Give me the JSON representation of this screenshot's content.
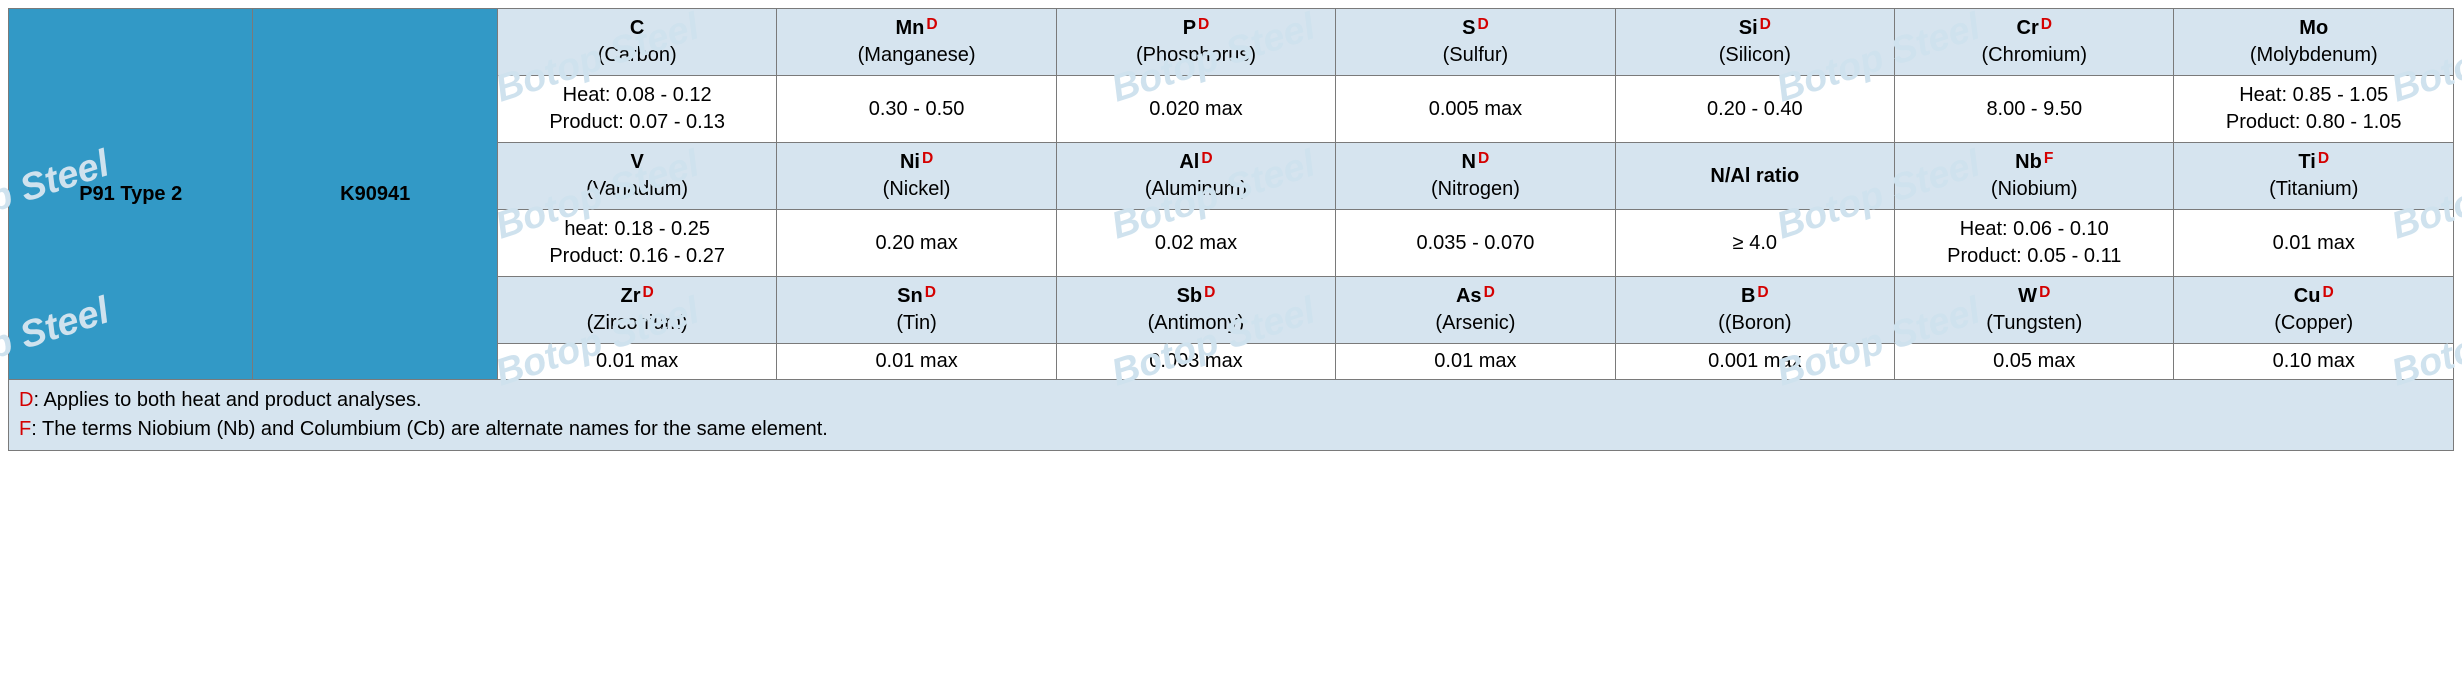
{
  "colors": {
    "grade_bg": "#3299c6",
    "uns_bg": "#3299c6",
    "header_bg": "#d6e4ef",
    "value_bg": "#ffffff",
    "footer_bg": "#d6e4ef",
    "border": "#7a7a7a",
    "sup_d": "#d40000",
    "sup_f": "#d40000",
    "watermark": "#cfe2ee"
  },
  "watermark_text": "Botop Steel",
  "grade": "P91 Type 2",
  "uns": "K90941",
  "rows": [
    {
      "headers": [
        {
          "sym": "C",
          "sup": "",
          "name": "(Carbon)"
        },
        {
          "sym": "Mn",
          "sup": "D",
          "name": "(Manganese)"
        },
        {
          "sym": "P",
          "sup": "D",
          "name": "(Phosphorus)"
        },
        {
          "sym": "S",
          "sup": "D",
          "name": "(Sulfur)"
        },
        {
          "sym": "Si",
          "sup": "D",
          "name": "(Silicon)"
        },
        {
          "sym": "Cr",
          "sup": "D",
          "name": "(Chromium)"
        },
        {
          "sym": "Mo",
          "sup": "",
          "name": "(Molybdenum)"
        }
      ],
      "values": [
        {
          "l1": "Heat: 0.08 - 0.12",
          "l2": "Product: 0.07 - 0.13"
        },
        {
          "l1": "0.30 - 0.50"
        },
        {
          "l1": "0.020 max"
        },
        {
          "l1": "0.005 max"
        },
        {
          "l1": "0.20 - 0.40"
        },
        {
          "l1": "8.00 - 9.50"
        },
        {
          "l1": "Heat: 0.85 - 1.05",
          "l2": "Product: 0.80 - 1.05"
        }
      ]
    },
    {
      "headers": [
        {
          "sym": "V",
          "sup": "",
          "name": "(Vanadium)"
        },
        {
          "sym": "Ni",
          "sup": "D",
          "name": "(Nickel)"
        },
        {
          "sym": "Al",
          "sup": "D",
          "name": "(Aluminum)"
        },
        {
          "sym": "N",
          "sup": "D",
          "name": "(Nitrogen)"
        },
        {
          "sym": "N/Al ratio",
          "sup": "",
          "name": ""
        },
        {
          "sym": "Nb",
          "sup": "F",
          "name": "(Niobium)"
        },
        {
          "sym": "Ti",
          "sup": "D",
          "name": "(Titanium)"
        }
      ],
      "values": [
        {
          "l1": "heat: 0.18 - 0.25",
          "l2": "Product: 0.16 - 0.27"
        },
        {
          "l1": "0.20 max"
        },
        {
          "l1": "0.02 max"
        },
        {
          "l1": "0.035 - 0.070"
        },
        {
          "l1": "≥ 4.0"
        },
        {
          "l1": "Heat: 0.06 - 0.10",
          "l2": "Product: 0.05 - 0.11"
        },
        {
          "l1": "0.01 max"
        }
      ]
    },
    {
      "headers": [
        {
          "sym": "Zr",
          "sup": "D",
          "name": "(Zirconium)"
        },
        {
          "sym": "Sn",
          "sup": "D",
          "name": "(Tin)"
        },
        {
          "sym": "Sb",
          "sup": "D",
          "name": "(Antimony)"
        },
        {
          "sym": "As",
          "sup": "D",
          "name": "(Arsenic)"
        },
        {
          "sym": "B",
          "sup": "D",
          "name": "((Boron)"
        },
        {
          "sym": "W",
          "sup": "D",
          "name": "(Tungsten)"
        },
        {
          "sym": "Cu",
          "sup": "D",
          "name": "(Copper)"
        }
      ],
      "values": [
        {
          "l1": "0.01 max"
        },
        {
          "l1": "0.01 max"
        },
        {
          "l1": "0.003 max"
        },
        {
          "l1": "0.01 max"
        },
        {
          "l1": "0.001 max"
        },
        {
          "l1": "0.05 max"
        },
        {
          "l1": "0.10 max"
        }
      ]
    }
  ],
  "footnotes": [
    {
      "key": "D",
      "cls": "fk-d",
      "text": ": Applies to both heat and product analyses."
    },
    {
      "key": "F",
      "cls": "fk-f",
      "text": ": The terms Niobium (Nb) and Columbium (Cb) are alternate names for the same element."
    }
  ],
  "col_widths_pct": [
    10,
    10,
    11.43,
    11.43,
    11.43,
    11.43,
    11.43,
    11.43,
    11.43
  ]
}
